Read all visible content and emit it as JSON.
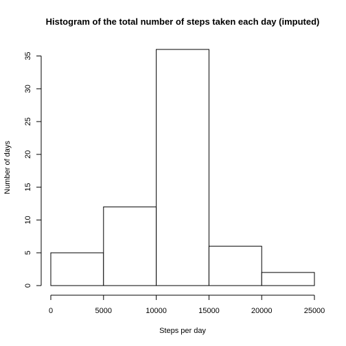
{
  "chart_data": {
    "type": "bar",
    "title": "Histogram of the total number of steps taken each day (imputed)",
    "xlabel": "Steps per day",
    "ylabel": "Number of days",
    "bins": [
      {
        "start": 0,
        "end": 5000,
        "count": 5
      },
      {
        "start": 5000,
        "end": 10000,
        "count": 12
      },
      {
        "start": 10000,
        "end": 15000,
        "count": 36
      },
      {
        "start": 15000,
        "end": 20000,
        "count": 6
      },
      {
        "start": 20000,
        "end": 25000,
        "count": 2
      }
    ],
    "x_ticks": [
      0,
      5000,
      10000,
      15000,
      20000,
      25000
    ],
    "y_ticks": [
      0,
      5,
      10,
      15,
      20,
      25,
      30,
      35
    ],
    "xlim": [
      0,
      25000
    ],
    "ylim": [
      0,
      36
    ],
    "grid": false,
    "bar_fill": "#ffffff",
    "bar_stroke": "#000000"
  }
}
